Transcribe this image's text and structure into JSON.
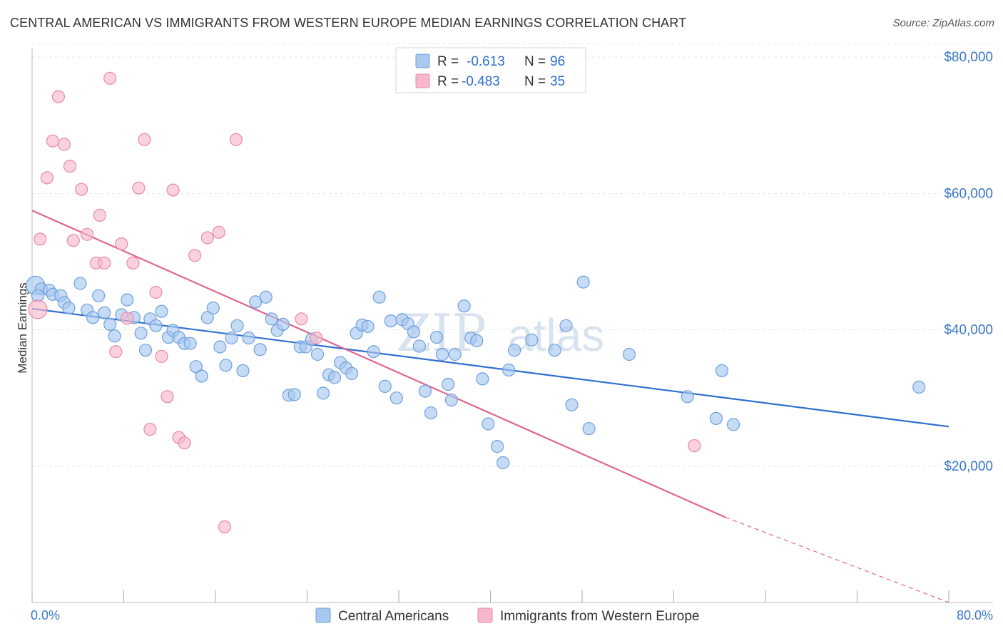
{
  "title": "CENTRAL AMERICAN VS IMMIGRANTS FROM WESTERN EUROPE MEDIAN EARNINGS CORRELATION CHART",
  "source": "Source: ZipAtlas.com",
  "watermark": {
    "zip": "ZIP",
    "atlas": "atlas"
  },
  "colors": {
    "blue_fill": "#a8c8f0",
    "blue_stroke": "#6fa0dc",
    "blue_line": "#2f6fd0",
    "pink_fill": "#f7b8cb",
    "pink_stroke": "#e88aa8",
    "pink_line": "#e06590",
    "tick_text": "#3a78c9",
    "grid": "#e6e6e6"
  },
  "legend": {
    "rows": [
      {
        "r_label": "R =",
        "r_value": "-0.613",
        "n_label": "N =",
        "n_value": "96",
        "series": "blue"
      },
      {
        "r_label": "R =",
        "r_value": "-0.483",
        "n_label": "N =",
        "n_value": "35",
        "series": "pink"
      }
    ]
  },
  "bottom_legend": [
    {
      "label": "Central Americans",
      "series": "blue"
    },
    {
      "label": "Immigrants from Western Europe",
      "series": "pink"
    }
  ],
  "chart_data": {
    "type": "scatter",
    "title": "CENTRAL AMERICAN VS IMMIGRANTS FROM WESTERN EUROPE MEDIAN EARNINGS CORRELATION CHART",
    "xlabel": "",
    "ylabel": "Median Earnings",
    "xlim": [
      0,
      80
    ],
    "ylim": [
      0,
      82000
    ],
    "x_tick_labels": [
      "0.0%",
      "80.0%"
    ],
    "y_ticks": [
      20000,
      40000,
      60000,
      80000
    ],
    "y_tick_labels": [
      "$20,000",
      "$40,000",
      "$60,000",
      "$80,000"
    ],
    "grid": "horizontal dashed",
    "legend_position": "top-center",
    "series": [
      {
        "name": "Central Americans",
        "color": "#a8c8f0",
        "trend": {
          "x0": 0,
          "y0": 43100,
          "x1": 80,
          "y1": 25800
        },
        "points": [
          [
            0.3,
            46500
          ],
          [
            0.8,
            46000
          ],
          [
            1.5,
            45800
          ],
          [
            1.8,
            45200
          ],
          [
            2.5,
            45000
          ],
          [
            2.8,
            44000
          ],
          [
            3.2,
            43200
          ],
          [
            4.2,
            46800
          ],
          [
            4.8,
            42900
          ],
          [
            5.3,
            41800
          ],
          [
            5.8,
            45000
          ],
          [
            6.3,
            42500
          ],
          [
            6.8,
            40800
          ],
          [
            7.2,
            39100
          ],
          [
            7.8,
            42200
          ],
          [
            8.3,
            44400
          ],
          [
            8.9,
            41800
          ],
          [
            9.5,
            39500
          ],
          [
            9.9,
            37000
          ],
          [
            10.3,
            41600
          ],
          [
            10.8,
            40600
          ],
          [
            11.3,
            42700
          ],
          [
            11.9,
            38900
          ],
          [
            12.3,
            39900
          ],
          [
            12.8,
            38900
          ],
          [
            13.3,
            38000
          ],
          [
            13.8,
            38000
          ],
          [
            14.3,
            34600
          ],
          [
            14.8,
            33200
          ],
          [
            15.3,
            41800
          ],
          [
            15.8,
            43200
          ],
          [
            16.4,
            37500
          ],
          [
            16.9,
            34800
          ],
          [
            17.4,
            38800
          ],
          [
            17.9,
            40600
          ],
          [
            18.4,
            34000
          ],
          [
            18.9,
            38800
          ],
          [
            19.5,
            44100
          ],
          [
            19.9,
            37100
          ],
          [
            20.4,
            44800
          ],
          [
            20.9,
            41600
          ],
          [
            21.4,
            39900
          ],
          [
            21.9,
            40800
          ],
          [
            22.4,
            30400
          ],
          [
            22.9,
            30500
          ],
          [
            23.4,
            37500
          ],
          [
            23.9,
            37500
          ],
          [
            24.4,
            38600
          ],
          [
            24.9,
            36400
          ],
          [
            25.4,
            30700
          ],
          [
            25.9,
            33400
          ],
          [
            26.4,
            33000
          ],
          [
            26.9,
            35200
          ],
          [
            27.4,
            34400
          ],
          [
            27.9,
            33600
          ],
          [
            28.3,
            39500
          ],
          [
            28.8,
            40700
          ],
          [
            29.3,
            40500
          ],
          [
            29.8,
            36800
          ],
          [
            30.3,
            44800
          ],
          [
            30.8,
            31700
          ],
          [
            31.3,
            41300
          ],
          [
            31.8,
            30000
          ],
          [
            32.3,
            41500
          ],
          [
            32.8,
            40900
          ],
          [
            33.3,
            39700
          ],
          [
            33.8,
            37600
          ],
          [
            34.3,
            31000
          ],
          [
            34.8,
            27800
          ],
          [
            35.3,
            38900
          ],
          [
            35.8,
            36400
          ],
          [
            36.3,
            32000
          ],
          [
            36.6,
            29700
          ],
          [
            36.9,
            36400
          ],
          [
            37.7,
            43500
          ],
          [
            38.3,
            38800
          ],
          [
            38.8,
            38400
          ],
          [
            39.3,
            32800
          ],
          [
            39.8,
            26200
          ],
          [
            40.6,
            22900
          ],
          [
            41.1,
            20500
          ],
          [
            41.6,
            34100
          ],
          [
            42.1,
            37000
          ],
          [
            43.6,
            38500
          ],
          [
            45.6,
            37000
          ],
          [
            46.6,
            40600
          ],
          [
            47.1,
            29000
          ],
          [
            48.1,
            47000
          ],
          [
            48.6,
            25500
          ],
          [
            52.1,
            36400
          ],
          [
            57.2,
            30200
          ],
          [
            59.7,
            27000
          ],
          [
            60.2,
            34000
          ],
          [
            61.2,
            26100
          ],
          [
            77.4,
            31600
          ],
          [
            0.5,
            45000
          ]
        ]
      },
      {
        "name": "Immigrants from Western Europe",
        "color": "#f7b8cb",
        "trend": {
          "x0": 0,
          "y0": 57500,
          "x1": 60.5,
          "y1": 12500,
          "dashed_to": {
            "x": 80,
            "y": -2000
          }
        },
        "points": [
          [
            0.5,
            43000
          ],
          [
            0.7,
            53300
          ],
          [
            1.3,
            62300
          ],
          [
            1.8,
            67700
          ],
          [
            2.3,
            74200
          ],
          [
            2.8,
            67200
          ],
          [
            3.3,
            64000
          ],
          [
            3.6,
            53100
          ],
          [
            4.3,
            60600
          ],
          [
            4.8,
            54000
          ],
          [
            5.6,
            49800
          ],
          [
            5.9,
            56800
          ],
          [
            6.3,
            49800
          ],
          [
            6.8,
            76900
          ],
          [
            7.3,
            36800
          ],
          [
            7.8,
            52600
          ],
          [
            8.3,
            41700
          ],
          [
            8.8,
            49800
          ],
          [
            9.3,
            60800
          ],
          [
            9.8,
            67900
          ],
          [
            10.3,
            25400
          ],
          [
            10.8,
            45500
          ],
          [
            11.3,
            36100
          ],
          [
            11.8,
            30200
          ],
          [
            12.3,
            60500
          ],
          [
            12.8,
            24200
          ],
          [
            13.3,
            23400
          ],
          [
            14.2,
            50900
          ],
          [
            15.3,
            53500
          ],
          [
            16.3,
            54300
          ],
          [
            16.8,
            11100
          ],
          [
            17.8,
            67900
          ],
          [
            23.5,
            41600
          ],
          [
            24.8,
            38800
          ],
          [
            57.8,
            23000
          ]
        ]
      }
    ]
  }
}
